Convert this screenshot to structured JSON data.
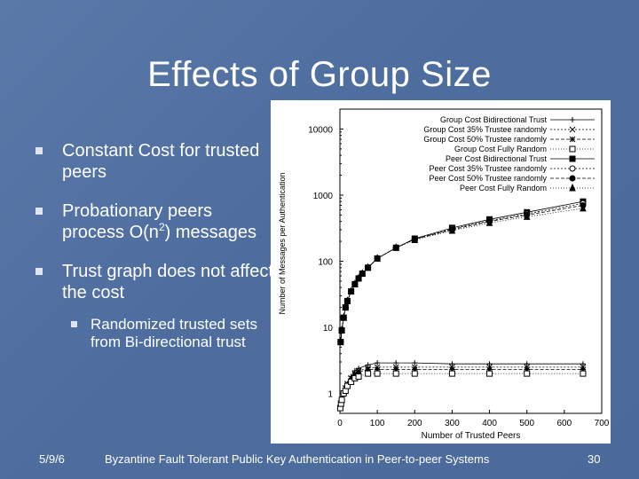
{
  "slide": {
    "title": "Effects of Group Size",
    "bullets": [
      {
        "text": "Constant Cost for trusted peers"
      },
      {
        "pre": "Probationary peers process O(n",
        "sup": "2",
        "post": ") messages"
      },
      {
        "text": "Trust graph does not affect the cost"
      }
    ],
    "sub_bullet": "Randomized trusted sets from Bi-directional trust"
  },
  "footer": {
    "date": "5/9/6",
    "text": "Byzantine Fault Tolerant Public Key Authentication in Peer-to-peer Systems",
    "page": "30"
  },
  "chart_data": {
    "type": "line",
    "xlabel": "Number of Trusted Peers",
    "ylabel": "Number of Messages per Authentication",
    "xlim": [
      0,
      700
    ],
    "ylim": [
      0.5,
      20000
    ],
    "yscale": "log",
    "xticks": [
      "0",
      "100",
      "200",
      "300",
      "400",
      "500",
      "600",
      "700"
    ],
    "yticks": [
      {
        "value": 1,
        "label": "1"
      },
      {
        "value": 10,
        "label": "10"
      },
      {
        "value": 100,
        "label": "100"
      },
      {
        "value": 1000,
        "label": "1000"
      },
      {
        "value": 10000,
        "label": "10000"
      }
    ],
    "legend_position": "top-right",
    "series": [
      {
        "name": "Group Cost Bidirectional Trust",
        "marker": "+",
        "dash": "",
        "x": [
          1,
          3,
          5,
          10,
          15,
          20,
          30,
          40,
          50,
          75,
          100,
          150,
          200,
          300,
          400,
          500,
          650
        ],
        "y": [
          0.6,
          0.7,
          0.8,
          1.0,
          1.2,
          1.4,
          1.8,
          2.2,
          2.4,
          2.7,
          2.9,
          2.9,
          2.9,
          2.8,
          2.8,
          2.8,
          2.8
        ]
      },
      {
        "name": "Group Cost 35% Trustee randomly",
        "marker": "x",
        "dash": "2,2",
        "x": [
          1,
          3,
          5,
          10,
          15,
          20,
          30,
          40,
          50,
          75,
          100,
          150,
          200,
          300,
          400,
          500,
          650
        ],
        "y": [
          0.6,
          0.7,
          0.8,
          1.0,
          1.2,
          1.4,
          1.7,
          2.0,
          2.2,
          2.4,
          2.5,
          2.5,
          2.5,
          2.5,
          2.5,
          2.5,
          2.5
        ]
      },
      {
        "name": "Group Cost 50% Trustee randomly",
        "marker": "star",
        "dash": "4,2",
        "x": [
          1,
          3,
          5,
          10,
          15,
          20,
          30,
          40,
          50,
          75,
          100,
          150,
          200,
          300,
          400,
          500,
          650
        ],
        "y": [
          0.6,
          0.7,
          0.8,
          1.0,
          1.2,
          1.4,
          1.7,
          1.9,
          2.1,
          2.3,
          2.3,
          2.3,
          2.3,
          2.3,
          2.3,
          2.3,
          2.3
        ]
      },
      {
        "name": "Group Cost Fully Random",
        "marker": "square-open",
        "dash": "1,2",
        "x": [
          1,
          3,
          5,
          10,
          15,
          20,
          30,
          40,
          50,
          75,
          100,
          150,
          200,
          300,
          400,
          500,
          650
        ],
        "y": [
          0.6,
          0.7,
          0.8,
          1.0,
          1.1,
          1.3,
          1.5,
          1.7,
          1.8,
          2.0,
          2.0,
          2.0,
          2.0,
          2.0,
          2.0,
          2.0,
          2.0
        ]
      },
      {
        "name": "Peer Cost Bidirectional Trust",
        "marker": "square-filled",
        "dash": "",
        "x": [
          2,
          5,
          10,
          15,
          20,
          30,
          40,
          50,
          60,
          75,
          100,
          150,
          200,
          300,
          400,
          500,
          650
        ],
        "y": [
          6,
          9,
          14,
          20,
          25,
          35,
          45,
          55,
          65,
          80,
          110,
          160,
          220,
          320,
          430,
          550,
          800
        ]
      },
      {
        "name": "Peer Cost 35% Trustee randomly",
        "marker": "circle-open",
        "dash": "2,2",
        "x": [
          2,
          5,
          10,
          15,
          20,
          30,
          40,
          50,
          60,
          75,
          100,
          150,
          200,
          300,
          400,
          500,
          650
        ],
        "y": [
          6,
          9,
          14,
          20,
          25,
          35,
          45,
          55,
          65,
          80,
          110,
          160,
          215,
          310,
          410,
          520,
          750
        ]
      },
      {
        "name": "Peer Cost 50% Trustee randomly",
        "marker": "circle-filled",
        "dash": "4,2",
        "x": [
          2,
          5,
          10,
          15,
          20,
          30,
          40,
          50,
          60,
          75,
          100,
          150,
          200,
          300,
          400,
          500,
          650
        ],
        "y": [
          6,
          9,
          14,
          20,
          25,
          35,
          45,
          55,
          65,
          80,
          110,
          160,
          215,
          300,
          400,
          500,
          700
        ]
      },
      {
        "name": "Peer Cost Fully Random",
        "marker": "triangle-filled",
        "dash": "1,2",
        "x": [
          2,
          5,
          10,
          15,
          20,
          30,
          40,
          50,
          60,
          75,
          100,
          150,
          200,
          300,
          400,
          500,
          650
        ],
        "y": [
          6,
          9,
          14,
          20,
          25,
          35,
          45,
          55,
          65,
          80,
          110,
          160,
          210,
          290,
          380,
          470,
          630
        ]
      }
    ]
  }
}
